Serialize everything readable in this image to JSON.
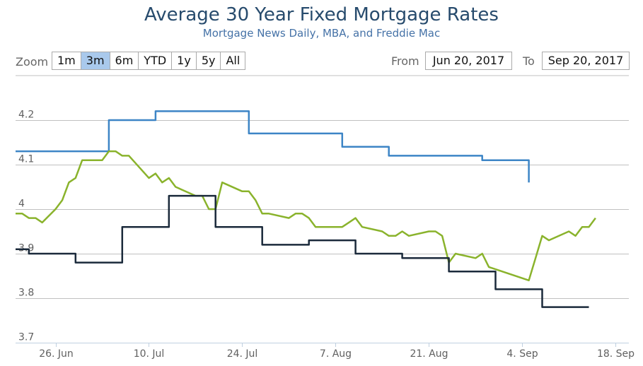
{
  "title": "Average 30 Year Fixed Mortgage Rates",
  "subtitle": "Mortgage News Daily, MBA, and Freddie Mac",
  "zoom": {
    "label": "Zoom",
    "buttons": [
      "1m",
      "3m",
      "6m",
      "YTD",
      "1y",
      "5y",
      "All"
    ],
    "active": "3m"
  },
  "range": {
    "from_label": "From",
    "from_value": "Jun 20, 2017",
    "to_label": "To",
    "to_value": "Sep 20, 2017"
  },
  "colors": {
    "blue": "#3d85c6",
    "green": "#8ab32c",
    "navy": "#1b2a3b",
    "grid": "#c0c0c0"
  },
  "chart_data": {
    "type": "line",
    "x_range": [
      "2017-06-20",
      "2017-09-20"
    ],
    "ylim": [
      3.7,
      4.25
    ],
    "y_ticks": [
      3.7,
      3.8,
      3.9,
      4.0,
      4.1,
      4.2
    ],
    "y_tick_labels": [
      "3.7",
      "3.8",
      "3.9",
      "4",
      "4.1",
      "4.2"
    ],
    "x_ticks": [
      {
        "date": "2017-06-26",
        "label": "26. Jun"
      },
      {
        "date": "2017-07-10",
        "label": "10. Jul"
      },
      {
        "date": "2017-07-24",
        "label": "24. Jul"
      },
      {
        "date": "2017-08-07",
        "label": "7. Aug"
      },
      {
        "date": "2017-08-21",
        "label": "21. Aug"
      },
      {
        "date": "2017-09-04",
        "label": "4. Sep"
      },
      {
        "date": "2017-09-18",
        "label": "18. Sep"
      }
    ],
    "series": [
      {
        "color": "#3d85c6",
        "step": true,
        "points": [
          [
            "2017-06-20",
            4.13
          ],
          [
            "2017-07-04",
            4.2
          ],
          [
            "2017-07-11",
            4.22
          ],
          [
            "2017-07-25",
            4.17
          ],
          [
            "2017-08-08",
            4.14
          ],
          [
            "2017-08-15",
            4.12
          ],
          [
            "2017-08-29",
            4.11
          ],
          [
            "2017-09-05",
            4.06
          ]
        ]
      },
      {
        "color": "#8ab32c",
        "step": false,
        "points": [
          [
            "2017-06-20",
            3.99
          ],
          [
            "2017-06-21",
            3.99
          ],
          [
            "2017-06-22",
            3.98
          ],
          [
            "2017-06-23",
            3.98
          ],
          [
            "2017-06-24",
            3.97
          ],
          [
            "2017-06-26",
            4.0
          ],
          [
            "2017-06-27",
            4.02
          ],
          [
            "2017-06-28",
            4.06
          ],
          [
            "2017-06-29",
            4.07
          ],
          [
            "2017-06-30",
            4.11
          ],
          [
            "2017-07-03",
            4.11
          ],
          [
            "2017-07-04",
            4.13
          ],
          [
            "2017-07-05",
            4.13
          ],
          [
            "2017-07-06",
            4.12
          ],
          [
            "2017-07-07",
            4.12
          ],
          [
            "2017-07-10",
            4.07
          ],
          [
            "2017-07-11",
            4.08
          ],
          [
            "2017-07-12",
            4.06
          ],
          [
            "2017-07-13",
            4.07
          ],
          [
            "2017-07-14",
            4.05
          ],
          [
            "2017-07-17",
            4.03
          ],
          [
            "2017-07-18",
            4.03
          ],
          [
            "2017-07-19",
            4.0
          ],
          [
            "2017-07-20",
            4.0
          ],
          [
            "2017-07-21",
            4.06
          ],
          [
            "2017-07-24",
            4.04
          ],
          [
            "2017-07-25",
            4.04
          ],
          [
            "2017-07-26",
            4.02
          ],
          [
            "2017-07-27",
            3.99
          ],
          [
            "2017-07-28",
            3.99
          ],
          [
            "2017-07-31",
            3.98
          ],
          [
            "2017-08-01",
            3.99
          ],
          [
            "2017-08-02",
            3.99
          ],
          [
            "2017-08-03",
            3.98
          ],
          [
            "2017-08-04",
            3.96
          ],
          [
            "2017-08-07",
            3.96
          ],
          [
            "2017-08-08",
            3.96
          ],
          [
            "2017-08-09",
            3.97
          ],
          [
            "2017-08-10",
            3.98
          ],
          [
            "2017-08-11",
            3.96
          ],
          [
            "2017-08-14",
            3.95
          ],
          [
            "2017-08-15",
            3.94
          ],
          [
            "2017-08-16",
            3.94
          ],
          [
            "2017-08-17",
            3.95
          ],
          [
            "2017-08-18",
            3.94
          ],
          [
            "2017-08-21",
            3.95
          ],
          [
            "2017-08-22",
            3.95
          ],
          [
            "2017-08-23",
            3.94
          ],
          [
            "2017-08-24",
            3.88
          ],
          [
            "2017-08-25",
            3.9
          ],
          [
            "2017-08-28",
            3.89
          ],
          [
            "2017-08-29",
            3.9
          ],
          [
            "2017-08-30",
            3.87
          ],
          [
            "2017-09-01",
            3.86
          ],
          [
            "2017-09-05",
            3.84
          ],
          [
            "2017-09-06",
            3.89
          ],
          [
            "2017-09-07",
            3.94
          ],
          [
            "2017-09-08",
            3.93
          ],
          [
            "2017-09-11",
            3.95
          ],
          [
            "2017-09-12",
            3.94
          ],
          [
            "2017-09-13",
            3.96
          ],
          [
            "2017-09-14",
            3.96
          ],
          [
            "2017-09-15",
            3.98
          ]
        ]
      },
      {
        "color": "#1b2a3b",
        "step": true,
        "points": [
          [
            "2017-06-20",
            3.91
          ],
          [
            "2017-06-22",
            3.9
          ],
          [
            "2017-06-29",
            3.88
          ],
          [
            "2017-07-06",
            3.96
          ],
          [
            "2017-07-13",
            4.03
          ],
          [
            "2017-07-20",
            3.96
          ],
          [
            "2017-07-27",
            3.92
          ],
          [
            "2017-08-03",
            3.93
          ],
          [
            "2017-08-10",
            3.9
          ],
          [
            "2017-08-17",
            3.89
          ],
          [
            "2017-08-24",
            3.86
          ],
          [
            "2017-08-31",
            3.82
          ],
          [
            "2017-09-07",
            3.78
          ],
          [
            "2017-09-14",
            3.78
          ]
        ]
      }
    ]
  }
}
